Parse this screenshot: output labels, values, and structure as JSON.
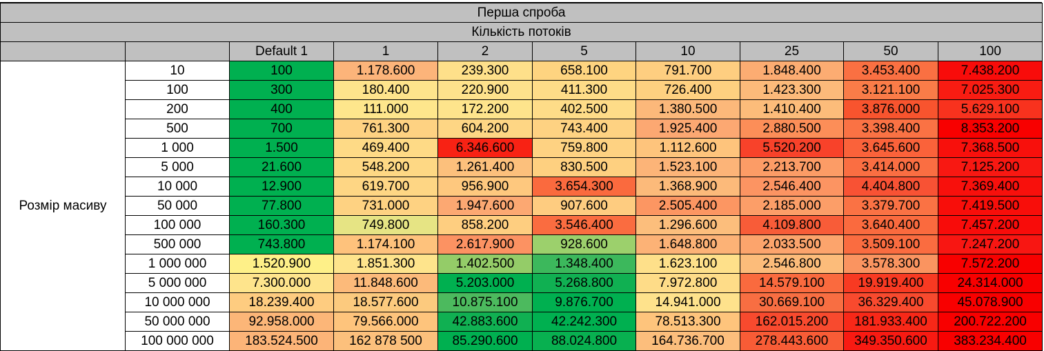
{
  "title": "Перша спроба",
  "subtitle": "Кількість потоків",
  "row_group_label": "Розмір масиву",
  "columns": [
    "Default 1",
    "1",
    "2",
    "5",
    "10",
    "25",
    "50",
    "100"
  ],
  "rows": [
    {
      "label": "10",
      "values": [
        "100",
        "1.178.600",
        "239.300",
        "658.100",
        "791.700",
        "1.848.400",
        "3.453.400",
        "7.438.200"
      ],
      "colors": [
        "#00b050",
        "#fcb47a",
        "#fee08a",
        "#fed480",
        "#fece80",
        "#fcac72",
        "#fa7042",
        "#f80c0a"
      ]
    },
    {
      "label": "100",
      "values": [
        "300",
        "180.400",
        "220.900",
        "411.300",
        "726.400",
        "1.423.300",
        "3.121.100",
        "7.025.300"
      ],
      "colors": [
        "#00b050",
        "#fee48c",
        "#fee28c",
        "#fedc88",
        "#fed080",
        "#fcba7a",
        "#fa7c48",
        "#f81c12"
      ]
    },
    {
      "label": "200",
      "values": [
        "400",
        "111.000",
        "172.200",
        "402.500",
        "1.380.500",
        "1.410.400",
        "3.876.000",
        "5.629.100"
      ],
      "colors": [
        "#00b050",
        "#fee68c",
        "#fee48c",
        "#fedc88",
        "#fcb87a",
        "#fcbc7a",
        "#f8542e",
        "#f8321e"
      ]
    },
    {
      "label": "500",
      "values": [
        "700",
        "761.300",
        "604.200",
        "743.400",
        "1.925.400",
        "2.880.500",
        "3.398.400",
        "8.353.200"
      ],
      "colors": [
        "#00b050",
        "#fed282",
        "#fed684",
        "#fed282",
        "#fca872",
        "#fc8e58",
        "#fa7244",
        "#f80000"
      ]
    },
    {
      "label": "1 000",
      "values": [
        "1.500",
        "469.400",
        "6.346.600",
        "759.800",
        "1.112.600",
        "5.520.200",
        "3.645.600",
        "7.368.500"
      ],
      "colors": [
        "#00b050",
        "#feda86",
        "#f82214",
        "#fed282",
        "#fec47c",
        "#f8422a",
        "#fa623a",
        "#f8100c"
      ]
    },
    {
      "label": "5 000",
      "values": [
        "21.600",
        "548.200",
        "1.261.400",
        "830.500",
        "1.523.100",
        "2.213.700",
        "3.414.000",
        "7.125.200"
      ],
      "colors": [
        "#00b050",
        "#fed884",
        "#fcc07c",
        "#fed080",
        "#fcb478",
        "#fc9c66",
        "#fa6e42",
        "#f81812"
      ]
    },
    {
      "label": "10 000",
      "values": [
        "12.900",
        "619.700",
        "956.900",
        "3.654.300",
        "1.368.900",
        "2.546.400",
        "4.404.800",
        "7.369.400"
      ],
      "colors": [
        "#00b050",
        "#fed684",
        "#fec87e",
        "#fa6a3e",
        "#fcba7a",
        "#fc9462",
        "#f85234",
        "#f8100c"
      ]
    },
    {
      "label": "50 000",
      "values": [
        "77.800",
        "731.000",
        "1.947.600",
        "907.600",
        "2.505.400",
        "2.185.000",
        "3.379.700",
        "7.419.500"
      ],
      "colors": [
        "#00b050",
        "#fed282",
        "#fca872",
        "#fecc80",
        "#fc9662",
        "#fc9e68",
        "#fa7244",
        "#f80e0a"
      ]
    },
    {
      "label": "100 000",
      "values": [
        "160.300",
        "749.800",
        "858.200",
        "3.546.400",
        "1.296.600",
        "4.109.800",
        "3.640.400",
        "7.457.200"
      ],
      "colors": [
        "#00b050",
        "#e6e484",
        "#fece80",
        "#fa6c40",
        "#fcbe7c",
        "#f85c38",
        "#fa6a3e",
        "#f80c0a"
      ]
    },
    {
      "label": "500 000",
      "values": [
        "743.800",
        "1.174.100",
        "2.617.900",
        "928.600",
        "1.648.800",
        "2.033.500",
        "3.509.100",
        "7.247.200"
      ],
      "colors": [
        "#00b050",
        "#fec27c",
        "#fc9262",
        "#9cd06c",
        "#fcb276",
        "#fca46c",
        "#fa6c40",
        "#f81612"
      ]
    },
    {
      "label": "1 000 000",
      "values": [
        "1.520.900",
        "1.851.300",
        "1.402.500",
        "1.348.400",
        "1.623.100",
        "2.546.800",
        "3.578.300",
        "7.572.200"
      ],
      "colors": [
        "#fef088",
        "#fee48c",
        "#94cc68",
        "#3cb85c",
        "#fee08a",
        "#fcbc7a",
        "#fa9460",
        "#f80000"
      ]
    },
    {
      "label": "5 000 000",
      "values": [
        "7.300.000",
        "11.848.600",
        "5.203.000",
        "5.268.800",
        "7.972.800",
        "14.579.100",
        "19.919.400",
        "24.314.000"
      ],
      "colors": [
        "#fee48c",
        "#fcba7a",
        "#00b050",
        "#10b052",
        "#fedc88",
        "#fa6a3e",
        "#f83a22",
        "#f80000"
      ]
    },
    {
      "label": "10 000 000",
      "values": [
        "18.239.400",
        "18.577.600",
        "10.875.100",
        "9.876.700",
        "14.941.000",
        "30.669.100",
        "36.329.400",
        "45.078.900"
      ],
      "colors": [
        "#fecc80",
        "#fcca7e",
        "#4cba5e",
        "#00b050",
        "#fee28c",
        "#f86e42",
        "#f84a2e",
        "#f80000"
      ]
    },
    {
      "label": "50 000 000",
      "values": [
        "92.958.000",
        "79.566.000",
        "42.883.600",
        "42.242.300",
        "78.513.300",
        "162.015.200",
        "181.933.400",
        "200.722.200"
      ],
      "colors": [
        "#fcb678",
        "#fec47c",
        "#10b052",
        "#00b050",
        "#fec47c",
        "#f84a2e",
        "#f82818",
        "#f80000"
      ]
    },
    {
      "label": "100 000 000",
      "values": [
        "183.524.500",
        "162 878 500",
        "85.290.600",
        "88.024.800",
        "164.736.700",
        "278.443.600",
        "349.350.600",
        "383.234.400"
      ],
      "colors": [
        "#fcb478",
        "#fcc07c",
        "#00b050",
        "#08b050",
        "#fcbe7c",
        "#f85c36",
        "#f81a12",
        "#f80000"
      ]
    }
  ]
}
